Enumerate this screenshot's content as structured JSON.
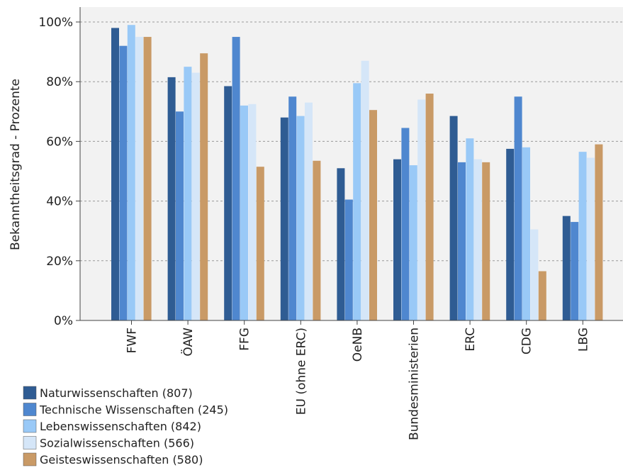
{
  "chart_data": {
    "type": "bar",
    "title": "",
    "xlabel": "",
    "ylabel": "Bekanntheitsgrad - Prozente",
    "ylim": [
      0,
      100
    ],
    "yticks": [
      "0%",
      "20%",
      "40%",
      "60%",
      "80%",
      "100%"
    ],
    "ytick_values": [
      0,
      20,
      40,
      60,
      80,
      100
    ],
    "grid": true,
    "legend_position": "bottom-left",
    "categories": [
      "FWF",
      "ÖAW",
      "FFG",
      "EU (ohne ERC)",
      "OeNB",
      "Bundesministerien",
      "ERC",
      "CDG",
      "LBG"
    ],
    "series": [
      {
        "name": "Naturwissenschaften (807)",
        "color": "#2f5c93",
        "values": [
          98,
          81.5,
          78.5,
          68,
          51,
          54,
          68.5,
          57.5,
          35
        ]
      },
      {
        "name": "Technische Wissenschaften (245)",
        "color": "#4f87cf",
        "values": [
          92,
          70,
          95,
          75,
          40.5,
          64.5,
          53,
          75,
          33
        ]
      },
      {
        "name": "Lebenswissenschaften (842)",
        "color": "#99c9f7",
        "values": [
          99,
          85,
          72,
          68.5,
          79.5,
          52,
          61,
          58,
          56.5
        ]
      },
      {
        "name": "Sozialwissenschaften (566)",
        "color": "#d5e6f8",
        "values": [
          95,
          83,
          72.5,
          73,
          87,
          74,
          54,
          30.5,
          54.5
        ]
      },
      {
        "name": "Geisteswissenschaften (580)",
        "color": "#c99a66",
        "values": [
          95,
          89.5,
          51.5,
          53.5,
          70.5,
          76,
          53,
          16.5,
          59
        ]
      }
    ]
  }
}
